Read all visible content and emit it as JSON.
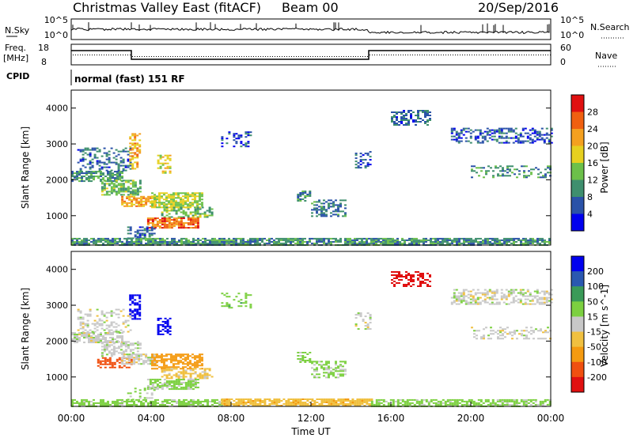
{
  "header": {
    "site": "Christmas Valley East (fitACF)",
    "beam": "Beam 00",
    "date": "20/Sep/2016"
  },
  "aux_panels": {
    "nsky": {
      "left_label": "N.Sky",
      "right_label": "N.Search",
      "left_ticks": [
        "10^5",
        "10^0"
      ],
      "right_ticks": [
        "10^5",
        "10^0"
      ]
    },
    "freq": {
      "left_label_1": "Freq.",
      "left_label_2": "[MHz]",
      "right_label": "Nave",
      "left_ticks": [
        "18",
        "8"
      ],
      "right_ticks": [
        "60",
        "0"
      ]
    },
    "cpid": {
      "label": "CPID",
      "text": "normal (fast) 151 RF"
    }
  },
  "chart_data": [
    {
      "type": "heatmap",
      "title": "Power",
      "ylabel": "Slant Range [km]",
      "xlabel": "",
      "xlim": [
        0,
        24
      ],
      "ylim": [
        180,
        4500
      ],
      "yticks": [
        1000,
        2000,
        3000,
        4000
      ],
      "colorbar": {
        "label": "Power [dB]",
        "ticks": [
          4,
          8,
          12,
          16,
          20,
          24,
          28
        ],
        "range": [
          0,
          32
        ],
        "colors": [
          "#0000ee",
          "#2a52a8",
          "#3f8f6e",
          "#6cc04a",
          "#e6d020",
          "#f4a020",
          "#f06010",
          "#e01010"
        ]
      },
      "patches": [
        {
          "t0": 0.0,
          "t1": 2.5,
          "r0": 1950,
          "r1": 2250,
          "level": 10,
          "density": 0.75
        },
        {
          "t0": 0.3,
          "t1": 3.0,
          "r0": 2250,
          "r1": 2900,
          "level": 7,
          "density": 0.35
        },
        {
          "t0": 1.5,
          "t1": 3.5,
          "r0": 1600,
          "r1": 2000,
          "level": 13,
          "density": 0.6
        },
        {
          "t0": 2.5,
          "t1": 4.2,
          "r0": 1250,
          "r1": 1550,
          "level": 22,
          "density": 0.7
        },
        {
          "t0": 4.0,
          "t1": 6.5,
          "r0": 1250,
          "r1": 1650,
          "level": 16,
          "density": 0.7
        },
        {
          "t0": 4.5,
          "t1": 7.0,
          "r0": 950,
          "r1": 1250,
          "level": 13,
          "density": 0.55
        },
        {
          "t0": 3.8,
          "t1": 6.3,
          "r0": 650,
          "r1": 950,
          "level": 25,
          "density": 0.8
        },
        {
          "t0": 2.9,
          "t1": 3.4,
          "r0": 2300,
          "r1": 3300,
          "level": 21,
          "density": 0.5
        },
        {
          "t0": 4.3,
          "t1": 4.9,
          "r0": 2200,
          "r1": 2700,
          "level": 18,
          "density": 0.5
        },
        {
          "t0": 2.8,
          "t1": 4.2,
          "r0": 380,
          "r1": 700,
          "level": 7,
          "density": 0.35
        },
        {
          "t0": 11.3,
          "t1": 12.0,
          "r0": 1400,
          "r1": 1700,
          "level": 9,
          "density": 0.6
        },
        {
          "t0": 12.0,
          "t1": 13.7,
          "r0": 1000,
          "r1": 1450,
          "level": 9,
          "density": 0.5
        },
        {
          "t0": 14.2,
          "t1": 15.0,
          "r0": 2350,
          "r1": 2800,
          "level": 6,
          "density": 0.4
        },
        {
          "t0": 16.0,
          "t1": 18.0,
          "r0": 3550,
          "r1": 3950,
          "level": 7,
          "density": 0.5
        },
        {
          "t0": 19.0,
          "t1": 24.0,
          "r0": 3050,
          "r1": 3450,
          "level": 6,
          "density": 0.5
        },
        {
          "t0": 20.0,
          "t1": 24.0,
          "r0": 2050,
          "r1": 2400,
          "level": 10,
          "density": 0.35
        },
        {
          "t0": 7.5,
          "t1": 9.0,
          "r0": 2950,
          "r1": 3350,
          "level": 5,
          "density": 0.3
        },
        {
          "t0": 0.0,
          "t1": 24.0,
          "r0": 200,
          "r1": 380,
          "level": 10,
          "density": 0.8
        }
      ]
    },
    {
      "type": "heatmap",
      "title": "Velocity",
      "ylabel": "Slant Range [km]",
      "xlabel": "Time UT",
      "xlim": [
        0,
        24
      ],
      "ylim": [
        180,
        4500
      ],
      "xticks": [
        "00:00",
        "04:00",
        "08:00",
        "12:00",
        "16:00",
        "20:00",
        "00:00"
      ],
      "yticks": [
        1000,
        2000,
        3000,
        4000
      ],
      "colorbar": {
        "label": "Velocity [m s^-1]",
        "ticks": [
          200,
          100,
          50,
          15,
          -15,
          -50,
          -100,
          -200
        ],
        "range": [
          -250,
          250
        ],
        "colors": [
          "#e01010",
          "#f05010",
          "#f49a10",
          "#f0c040",
          "#c8c8c8",
          "#7cd040",
          "#3a9a58",
          "#2a58b0",
          "#0000ee"
        ]
      },
      "patches": [
        {
          "t0": 0.0,
          "t1": 2.5,
          "r0": 1950,
          "r1": 2250,
          "level": 0,
          "density": 0.75
        },
        {
          "t0": 0.3,
          "t1": 3.0,
          "r0": 2250,
          "r1": 2900,
          "level": 0,
          "density": 0.3
        },
        {
          "t0": 1.5,
          "t1": 3.5,
          "r0": 1600,
          "r1": 2000,
          "level": 5,
          "density": 0.5
        },
        {
          "t0": 1.3,
          "t1": 3.0,
          "r0": 1250,
          "r1": 1550,
          "level": -120,
          "density": 0.55
        },
        {
          "t0": 2.5,
          "t1": 4.2,
          "r0": 1350,
          "r1": 1650,
          "level": 0,
          "density": 0.7
        },
        {
          "t0": 4.0,
          "t1": 6.5,
          "r0": 1250,
          "r1": 1650,
          "level": -70,
          "density": 0.65
        },
        {
          "t0": 4.5,
          "t1": 7.0,
          "r0": 950,
          "r1": 1250,
          "level": -30,
          "density": 0.5
        },
        {
          "t0": 3.8,
          "t1": 6.3,
          "r0": 650,
          "r1": 950,
          "level": 25,
          "density": 0.7
        },
        {
          "t0": 2.9,
          "t1": 3.4,
          "r0": 2600,
          "r1": 3300,
          "level": 230,
          "density": 0.6
        },
        {
          "t0": 4.3,
          "t1": 5.0,
          "r0": 2200,
          "r1": 2650,
          "level": 230,
          "density": 0.6
        },
        {
          "t0": 2.8,
          "t1": 4.2,
          "r0": 380,
          "r1": 700,
          "level": 25,
          "density": 0.3
        },
        {
          "t0": 11.3,
          "t1": 12.0,
          "r0": 1400,
          "r1": 1700,
          "level": 30,
          "density": 0.55
        },
        {
          "t0": 12.0,
          "t1": 13.7,
          "r0": 1000,
          "r1": 1450,
          "level": 25,
          "density": 0.5
        },
        {
          "t0": 14.2,
          "t1": 15.0,
          "r0": 2350,
          "r1": 2800,
          "level": 0,
          "density": 0.35
        },
        {
          "t0": 16.0,
          "t1": 18.0,
          "r0": 3550,
          "r1": 3950,
          "level": -220,
          "density": 0.5
        },
        {
          "t0": 19.0,
          "t1": 24.0,
          "r0": 3050,
          "r1": 3450,
          "level": 0,
          "density": 0.5
        },
        {
          "t0": 20.0,
          "t1": 24.0,
          "r0": 2050,
          "r1": 2400,
          "level": 0,
          "density": 0.3
        },
        {
          "t0": 7.5,
          "t1": 9.0,
          "r0": 2950,
          "r1": 3350,
          "level": 35,
          "density": 0.3
        },
        {
          "t0": 0.0,
          "t1": 7.5,
          "r0": 200,
          "r1": 380,
          "level": 30,
          "density": 0.7
        },
        {
          "t0": 7.5,
          "t1": 15.0,
          "r0": 200,
          "r1": 400,
          "level": -35,
          "density": 0.8
        },
        {
          "t0": 15.0,
          "t1": 24.0,
          "r0": 200,
          "r1": 380,
          "level": 30,
          "density": 0.7
        }
      ]
    }
  ]
}
